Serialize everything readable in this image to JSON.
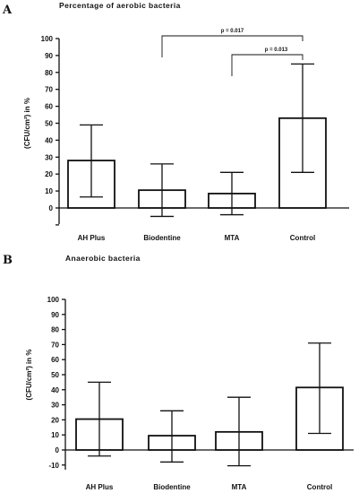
{
  "chart_data": [
    {
      "type": "bar",
      "panel_label": "A",
      "title": "Percentage of aerobic bacteria",
      "ylabel": "(CFU/cm²) in %",
      "categories": [
        "AH Plus",
        "Biodentine",
        "MTA",
        "Control"
      ],
      "series": [
        {
          "values": [
            28,
            10.5,
            8.5,
            53
          ],
          "error_low": [
            6.5,
            -5,
            -4,
            21
          ],
          "error_high": [
            49,
            26,
            21,
            85
          ]
        }
      ],
      "ylim": [
        -10,
        100
      ],
      "yticks": [
        0,
        10,
        20,
        30,
        40,
        50,
        60,
        70,
        80,
        90,
        100
      ],
      "grid": false,
      "annotations": [
        {
          "text": "p = 0.017",
          "from": "Biodentine",
          "to": "Control"
        },
        {
          "text": "p = 0.013",
          "from": "MTA",
          "to": "Control"
        }
      ]
    },
    {
      "type": "bar",
      "panel_label": "B",
      "title": "Anaerobic bacteria",
      "ylabel": "(CFU/cm²) in %",
      "categories": [
        "AH Plus",
        "Biodentine",
        "MTA",
        "Control"
      ],
      "series": [
        {
          "values": [
            20.5,
            9.5,
            12,
            41.5
          ],
          "error_low": [
            -4,
            -8,
            -10.5,
            11
          ],
          "error_high": [
            45,
            26,
            35,
            71
          ]
        }
      ],
      "ylim": [
        -10,
        100
      ],
      "yticks": [
        -10,
        0,
        10,
        20,
        30,
        40,
        50,
        60,
        70,
        80,
        90,
        100
      ],
      "grid": false,
      "annotations": []
    }
  ]
}
